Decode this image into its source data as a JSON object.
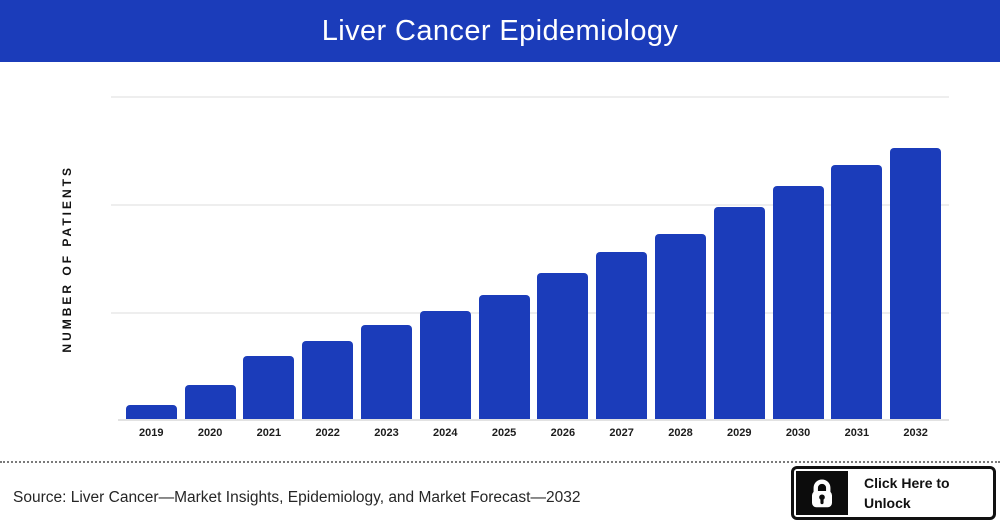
{
  "header": {
    "title": "Liver Cancer Epidemiology",
    "background_color": "#1b3cba",
    "text_color": "#ffffff"
  },
  "chart": {
    "y_axis_label": "NUMBER OF PATIENTS",
    "bar_color": "#1b3cba",
    "gridline_color": "#eeeeee",
    "axis_line_color": "#e2e2e2"
  },
  "chart_data": {
    "type": "bar",
    "title": "Liver Cancer Epidemiology",
    "categories": [
      "2019",
      "2020",
      "2021",
      "2022",
      "2023",
      "2024",
      "2025",
      "2026",
      "2027",
      "2028",
      "2029",
      "2030",
      "2031",
      "2032"
    ],
    "values": [
      14,
      34,
      63,
      78,
      94,
      108,
      124,
      146,
      167,
      185,
      212,
      233,
      254,
      271
    ],
    "xlabel": "",
    "ylabel": "NUMBER OF PATIENTS",
    "ylim": [
      0,
      324
    ],
    "y_tick_labels_visible": false,
    "gridlines": "horizontal",
    "gridline_values": [
      108,
      216,
      324
    ],
    "legend": "none"
  },
  "footer": {
    "source_text": "Source: Liver Cancer—Market Insights, Epidemiology, and Market Forecast—2032",
    "unlock_button": {
      "line1": "Click Here to",
      "line2": "Unlock",
      "icon": "lock-icon"
    }
  }
}
